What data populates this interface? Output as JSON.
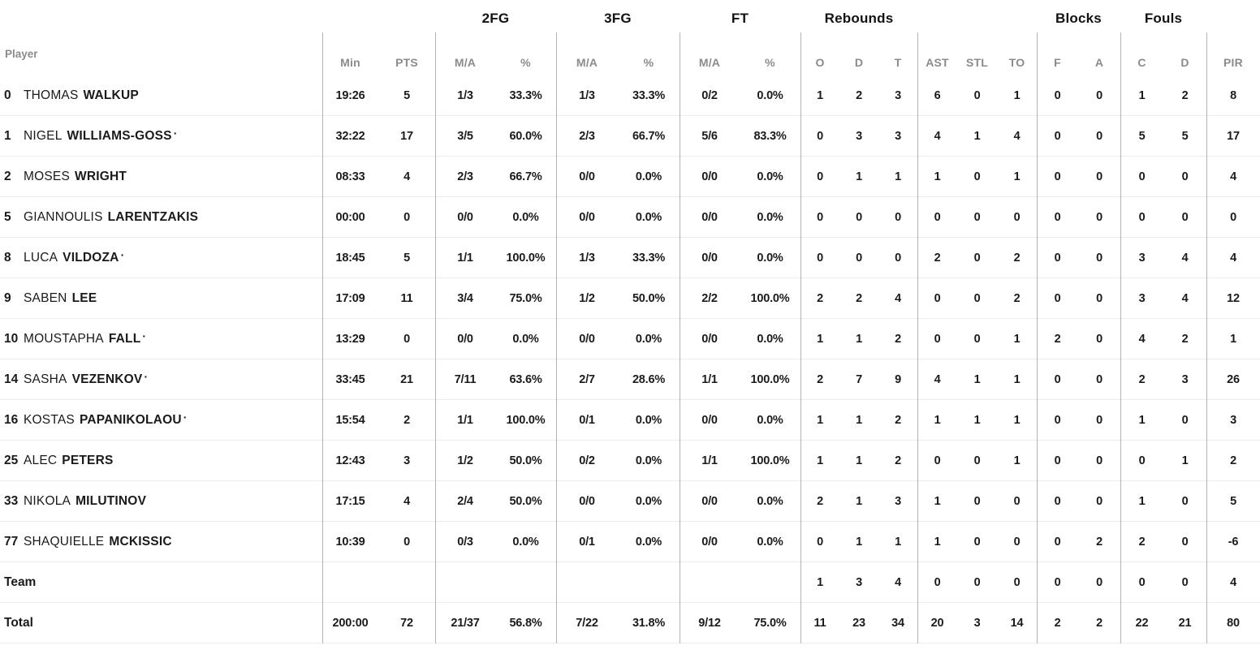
{
  "colors": {
    "background": "#ffffff",
    "text_primary": "#1b1b1b",
    "text_header_gray": "#8b8b8b",
    "divider_vertical": "#b4b4b4",
    "divider_row": "#ececec"
  },
  "table": {
    "player_col_label": "Player",
    "groups": {
      "fg2": "2FG",
      "fg3": "3FG",
      "ft": "FT",
      "reb": "Rebounds",
      "blk": "Blocks",
      "fouls": "Fouls"
    },
    "cols": {
      "min": "Min",
      "pts": "PTS",
      "ma": "M/A",
      "pct": "%",
      "o": "O",
      "d": "D",
      "t": "T",
      "ast": "AST",
      "stl": "STL",
      "to": "TO",
      "f": "F",
      "a": "A",
      "c": "C",
      "pir": "PIR"
    },
    "starter_marker": "·",
    "rows": [
      {
        "num": "0",
        "first": "THOMAS",
        "last": "WALKUP",
        "starter": false,
        "min": "19:26",
        "pts": "5",
        "fg2m": "1/3",
        "fg2p": "33.3%",
        "fg3m": "1/3",
        "fg3p": "33.3%",
        "ftm": "0/2",
        "ftp": "0.0%",
        "ro": "1",
        "rd": "2",
        "rt": "3",
        "ast": "6",
        "stl": "0",
        "to": "1",
        "bf": "0",
        "ba": "0",
        "fc": "1",
        "fd": "2",
        "pir": "8"
      },
      {
        "num": "1",
        "first": "NIGEL",
        "last": "WILLIAMS-GOSS",
        "starter": true,
        "min": "32:22",
        "pts": "17",
        "fg2m": "3/5",
        "fg2p": "60.0%",
        "fg3m": "2/3",
        "fg3p": "66.7%",
        "ftm": "5/6",
        "ftp": "83.3%",
        "ro": "0",
        "rd": "3",
        "rt": "3",
        "ast": "4",
        "stl": "1",
        "to": "4",
        "bf": "0",
        "ba": "0",
        "fc": "5",
        "fd": "5",
        "pir": "17"
      },
      {
        "num": "2",
        "first": "MOSES",
        "last": "WRIGHT",
        "starter": false,
        "min": "08:33",
        "pts": "4",
        "fg2m": "2/3",
        "fg2p": "66.7%",
        "fg3m": "0/0",
        "fg3p": "0.0%",
        "ftm": "0/0",
        "ftp": "0.0%",
        "ro": "0",
        "rd": "1",
        "rt": "1",
        "ast": "1",
        "stl": "0",
        "to": "1",
        "bf": "0",
        "ba": "0",
        "fc": "0",
        "fd": "0",
        "pir": "4"
      },
      {
        "num": "5",
        "first": "GIANNOULIS",
        "last": "LARENTZAKIS",
        "starter": false,
        "min": "00:00",
        "pts": "0",
        "fg2m": "0/0",
        "fg2p": "0.0%",
        "fg3m": "0/0",
        "fg3p": "0.0%",
        "ftm": "0/0",
        "ftp": "0.0%",
        "ro": "0",
        "rd": "0",
        "rt": "0",
        "ast": "0",
        "stl": "0",
        "to": "0",
        "bf": "0",
        "ba": "0",
        "fc": "0",
        "fd": "0",
        "pir": "0"
      },
      {
        "num": "8",
        "first": "LUCA",
        "last": "VILDOZA",
        "starter": true,
        "min": "18:45",
        "pts": "5",
        "fg2m": "1/1",
        "fg2p": "100.0%",
        "fg3m": "1/3",
        "fg3p": "33.3%",
        "ftm": "0/0",
        "ftp": "0.0%",
        "ro": "0",
        "rd": "0",
        "rt": "0",
        "ast": "2",
        "stl": "0",
        "to": "2",
        "bf": "0",
        "ba": "0",
        "fc": "3",
        "fd": "4",
        "pir": "4"
      },
      {
        "num": "9",
        "first": "SABEN",
        "last": "LEE",
        "starter": false,
        "min": "17:09",
        "pts": "11",
        "fg2m": "3/4",
        "fg2p": "75.0%",
        "fg3m": "1/2",
        "fg3p": "50.0%",
        "ftm": "2/2",
        "ftp": "100.0%",
        "ro": "2",
        "rd": "2",
        "rt": "4",
        "ast": "0",
        "stl": "0",
        "to": "2",
        "bf": "0",
        "ba": "0",
        "fc": "3",
        "fd": "4",
        "pir": "12"
      },
      {
        "num": "10",
        "first": "MOUSTAPHA",
        "last": "FALL",
        "starter": true,
        "min": "13:29",
        "pts": "0",
        "fg2m": "0/0",
        "fg2p": "0.0%",
        "fg3m": "0/0",
        "fg3p": "0.0%",
        "ftm": "0/0",
        "ftp": "0.0%",
        "ro": "1",
        "rd": "1",
        "rt": "2",
        "ast": "0",
        "stl": "0",
        "to": "1",
        "bf": "2",
        "ba": "0",
        "fc": "4",
        "fd": "2",
        "pir": "1"
      },
      {
        "num": "14",
        "first": "SASHA",
        "last": "VEZENKOV",
        "starter": true,
        "min": "33:45",
        "pts": "21",
        "fg2m": "7/11",
        "fg2p": "63.6%",
        "fg3m": "2/7",
        "fg3p": "28.6%",
        "ftm": "1/1",
        "ftp": "100.0%",
        "ro": "2",
        "rd": "7",
        "rt": "9",
        "ast": "4",
        "stl": "1",
        "to": "1",
        "bf": "0",
        "ba": "0",
        "fc": "2",
        "fd": "3",
        "pir": "26"
      },
      {
        "num": "16",
        "first": "KOSTAS",
        "last": "PAPANIKOLAOU",
        "starter": true,
        "min": "15:54",
        "pts": "2",
        "fg2m": "1/1",
        "fg2p": "100.0%",
        "fg3m": "0/1",
        "fg3p": "0.0%",
        "ftm": "0/0",
        "ftp": "0.0%",
        "ro": "1",
        "rd": "1",
        "rt": "2",
        "ast": "1",
        "stl": "1",
        "to": "1",
        "bf": "0",
        "ba": "0",
        "fc": "1",
        "fd": "0",
        "pir": "3"
      },
      {
        "num": "25",
        "first": "ALEC",
        "last": "PETERS",
        "starter": false,
        "min": "12:43",
        "pts": "3",
        "fg2m": "1/2",
        "fg2p": "50.0%",
        "fg3m": "0/2",
        "fg3p": "0.0%",
        "ftm": "1/1",
        "ftp": "100.0%",
        "ro": "1",
        "rd": "1",
        "rt": "2",
        "ast": "0",
        "stl": "0",
        "to": "1",
        "bf": "0",
        "ba": "0",
        "fc": "0",
        "fd": "1",
        "pir": "2"
      },
      {
        "num": "33",
        "first": "NIKOLA",
        "last": "MILUTINOV",
        "starter": false,
        "min": "17:15",
        "pts": "4",
        "fg2m": "2/4",
        "fg2p": "50.0%",
        "fg3m": "0/0",
        "fg3p": "0.0%",
        "ftm": "0/0",
        "ftp": "0.0%",
        "ro": "2",
        "rd": "1",
        "rt": "3",
        "ast": "1",
        "stl": "0",
        "to": "0",
        "bf": "0",
        "ba": "0",
        "fc": "1",
        "fd": "0",
        "pir": "5"
      },
      {
        "num": "77",
        "first": "SHAQUIELLE",
        "last": "MCKISSIC",
        "starter": false,
        "min": "10:39",
        "pts": "0",
        "fg2m": "0/3",
        "fg2p": "0.0%",
        "fg3m": "0/1",
        "fg3p": "0.0%",
        "ftm": "0/0",
        "ftp": "0.0%",
        "ro": "0",
        "rd": "1",
        "rt": "1",
        "ast": "1",
        "stl": "0",
        "to": "0",
        "bf": "0",
        "ba": "2",
        "fc": "2",
        "fd": "0",
        "pir": "-6"
      },
      {
        "label": "Team",
        "summary": true,
        "min": "",
        "pts": "",
        "fg2m": "",
        "fg2p": "",
        "fg3m": "",
        "fg3p": "",
        "ftm": "",
        "ftp": "",
        "ro": "1",
        "rd": "3",
        "rt": "4",
        "ast": "0",
        "stl": "0",
        "to": "0",
        "bf": "0",
        "ba": "0",
        "fc": "0",
        "fd": "0",
        "pir": "4"
      },
      {
        "label": "Total",
        "summary": true,
        "min": "200:00",
        "pts": "72",
        "fg2m": "21/37",
        "fg2p": "56.8%",
        "fg3m": "7/22",
        "fg3p": "31.8%",
        "ftm": "9/12",
        "ftp": "75.0%",
        "ro": "11",
        "rd": "23",
        "rt": "34",
        "ast": "20",
        "stl": "3",
        "to": "14",
        "bf": "2",
        "ba": "2",
        "fc": "22",
        "fd": "21",
        "pir": "80"
      }
    ]
  }
}
